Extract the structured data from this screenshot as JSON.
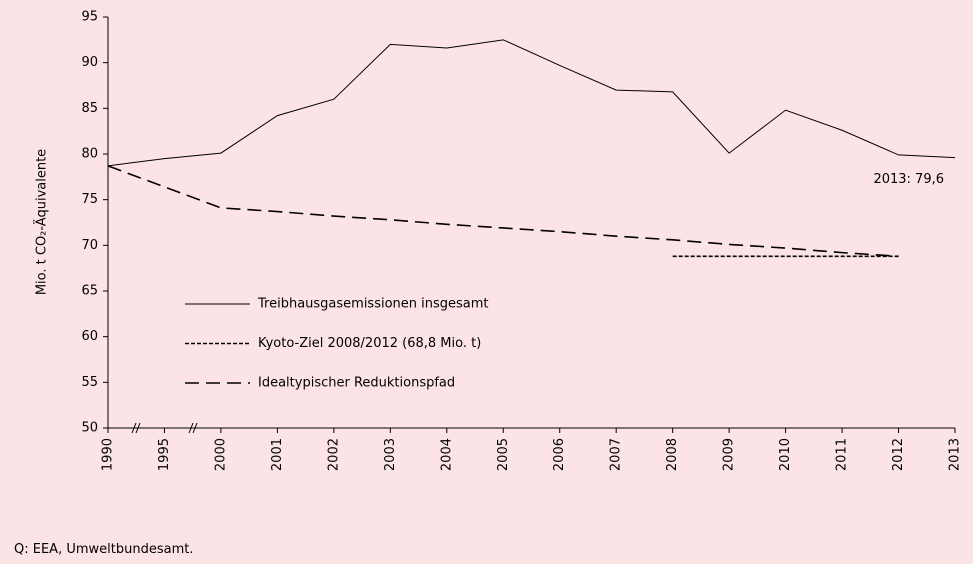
{
  "chart_data": {
    "type": "line",
    "y_label": "Mio. t CO₂-Äquivalente",
    "source": "Q: EEA, Umweltbundesamt.",
    "annotation": "2013: 79,6",
    "categories": [
      "1990",
      "1995",
      "2000",
      "2001",
      "2002",
      "2003",
      "2004",
      "2005",
      "2006",
      "2007",
      "2008",
      "2009",
      "2010",
      "2011",
      "2012",
      "2013"
    ],
    "series": [
      {
        "name": "Treibhausgasemissionen insgesamt",
        "color": "#000000",
        "line_style": "solid",
        "values": [
          78.7,
          79.5,
          80.1,
          84.2,
          86.0,
          92.0,
          91.6,
          92.5,
          89.7,
          87.0,
          86.8,
          80.1,
          84.8,
          82.6,
          79.9,
          79.6
        ]
      },
      {
        "name": "Kyoto-Ziel 2008/2012 (68,8 Mio. t)",
        "color": "#000000",
        "line_style": "dotted",
        "values": [
          null,
          null,
          null,
          null,
          null,
          null,
          null,
          null,
          null,
          null,
          68.8,
          68.8,
          68.8,
          68.8,
          68.8,
          null
        ]
      },
      {
        "name": "Idealtypischer Reduktionspfad",
        "color": "#000000",
        "line_style": "dashed",
        "values": [
          78.7,
          76.4,
          74.1,
          73.7,
          73.2,
          72.8,
          72.3,
          71.9,
          71.5,
          71.0,
          70.6,
          70.1,
          69.7,
          69.2,
          68.8,
          null
        ]
      }
    ],
    "ylim": [
      50,
      95
    ],
    "yticks": [
      50,
      55,
      60,
      65,
      70,
      75,
      80,
      85,
      90,
      95
    ],
    "grid": false,
    "legend": "lower left"
  }
}
